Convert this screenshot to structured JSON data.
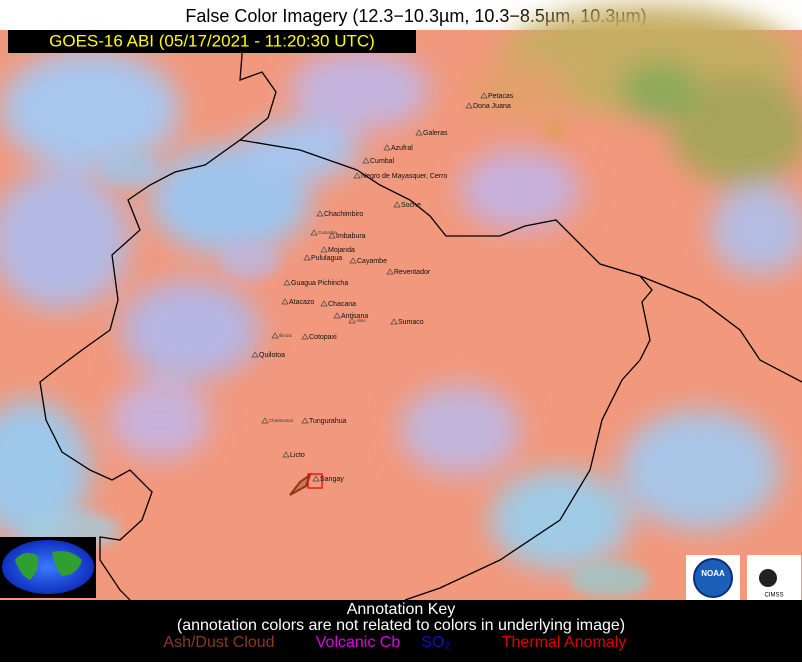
{
  "header": {
    "title": "False Color Imagery (12.3−10.3µm, 10.3−8.5µm, 10.3µm)",
    "timestamp": "GOES-16 ABI (05/17/2021 - 11:20:30 UTC)"
  },
  "volcanoes": [
    "Petacas",
    "Dona Juana",
    "Galeras",
    "Azufral",
    "Cumbal",
    "Negro de Mayasquer, Cerro",
    "Soche",
    "Chachimbiro",
    "Imbabura",
    "Mojanda",
    "Pululagua",
    "Cayambe",
    "Reventador",
    "Guagua Pichincha",
    "Atacazo",
    "Chacana",
    "Antisana",
    "Sumaco",
    "Cotopaxi",
    "Quilotoa",
    "Tungurahua",
    "Licto",
    "Sangay"
  ],
  "small_volcanoes": [
    "Cuicocha",
    "Aliso",
    "Illiniza",
    "Chimborazo"
  ],
  "logos": {
    "noaa": "NOAA",
    "cimss": "CIMSS"
  },
  "key": {
    "title": "Annotation Key",
    "note": "(annotation colors are not related to colors in underlying image)",
    "items": [
      {
        "label": "Ash/Dust Cloud",
        "color": "#8b3a1e"
      },
      {
        "label": "Volcanic Cb",
        "color": "#e000e0"
      },
      {
        "label": "SO₂",
        "color": "#1010c0"
      },
      {
        "label": "Thermal Anomaly",
        "color": "#e00000"
      }
    ]
  }
}
